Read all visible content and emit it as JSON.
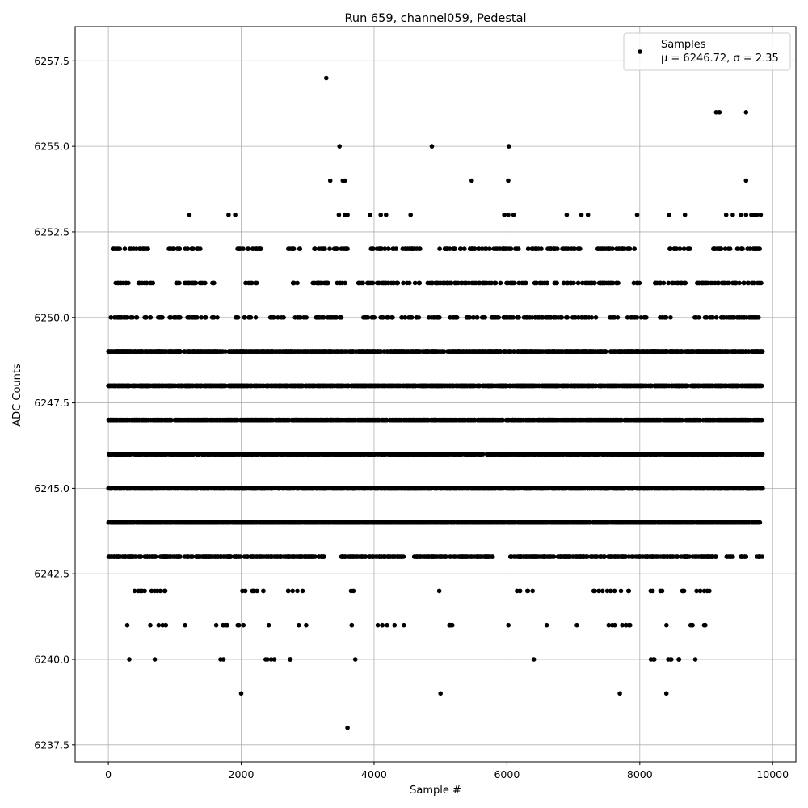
{
  "chart_data": {
    "type": "scatter",
    "title": "Run 659, channel059, Pedestal",
    "xlabel": "Sample #",
    "ylabel": "ADC Counts",
    "xlim": [
      -500,
      10350
    ],
    "ylim": [
      6237.0,
      6258.5
    ],
    "x_ticks": [
      0,
      2000,
      4000,
      6000,
      8000,
      10000
    ],
    "x_tick_labels": [
      "0",
      "2000",
      "4000",
      "6000",
      "8000",
      "10000"
    ],
    "y_ticks": [
      6237.5,
      6240.0,
      6242.5,
      6245.0,
      6247.5,
      6250.0,
      6252.5,
      6255.0,
      6257.5
    ],
    "y_tick_labels": [
      "6237.5",
      "6240.0",
      "6242.5",
      "6245.0",
      "6247.5",
      "6250.0",
      "6252.5",
      "6255.0",
      "6257.5"
    ],
    "grid": true,
    "legend_position": "top-right",
    "marker_color": "#000000",
    "series": [
      {
        "name": "Samples",
        "stats_label": "μ = 6246.72, σ = 2.35",
        "levels": [
          {
            "y": 6243,
            "x_ranges": [
              [
                0,
                3250
              ],
              [
                3500,
                4450
              ],
              [
                4600,
                5800
              ],
              [
                6050,
                9150
              ],
              [
                9300,
                9400
              ],
              [
                9500,
                9600
              ],
              [
                9750,
                9850
              ]
            ]
          },
          {
            "y": 6244,
            "x_ranges": [
              [
                0,
                9850
              ]
            ]
          },
          {
            "y": 6245,
            "x_ranges": [
              [
                0,
                9850
              ]
            ]
          },
          {
            "y": 6246,
            "x_ranges": [
              [
                0,
                9850
              ]
            ]
          },
          {
            "y": 6247,
            "x_ranges": [
              [
                0,
                9850
              ]
            ]
          },
          {
            "y": 6248,
            "x_ranges": [
              [
                0,
                9850
              ]
            ]
          },
          {
            "y": 6249,
            "x_ranges": [
              [
                0,
                9850
              ]
            ]
          }
        ],
        "points": [
          {
            "x": 3280,
            "y": 6257
          },
          {
            "x": 9150,
            "y": 6256
          },
          {
            "x": 9200,
            "y": 6256
          },
          {
            "x": 9600,
            "y": 6256
          },
          {
            "x": 3480,
            "y": 6255
          },
          {
            "x": 4870,
            "y": 6255
          },
          {
            "x": 6030,
            "y": 6255
          },
          {
            "x": 3340,
            "y": 6254
          },
          {
            "x": 3530,
            "y": 6254
          },
          {
            "x": 3560,
            "y": 6254
          },
          {
            "x": 5470,
            "y": 6254
          },
          {
            "x": 6020,
            "y": 6254
          },
          {
            "x": 9600,
            "y": 6254
          },
          {
            "x": 1220,
            "y": 6253
          },
          {
            "x": 1810,
            "y": 6253
          },
          {
            "x": 1910,
            "y": 6253
          },
          {
            "x": 3470,
            "y": 6253
          },
          {
            "x": 3560,
            "y": 6253
          },
          {
            "x": 3600,
            "y": 6253
          },
          {
            "x": 3940,
            "y": 6253
          },
          {
            "x": 4100,
            "y": 6253
          },
          {
            "x": 4180,
            "y": 6253
          },
          {
            "x": 4550,
            "y": 6253
          },
          {
            "x": 5960,
            "y": 6253
          },
          {
            "x": 6020,
            "y": 6253
          },
          {
            "x": 6100,
            "y": 6253
          },
          {
            "x": 6900,
            "y": 6253
          },
          {
            "x": 7120,
            "y": 6253
          },
          {
            "x": 7220,
            "y": 6253
          },
          {
            "x": 7960,
            "y": 6253
          },
          {
            "x": 8440,
            "y": 6253
          },
          {
            "x": 8680,
            "y": 6253
          },
          {
            "x": 9300,
            "y": 6253
          },
          {
            "x": 9400,
            "y": 6253
          },
          {
            "x": 9520,
            "y": 6253
          },
          {
            "x": 9600,
            "y": 6253
          },
          {
            "x": 9680,
            "y": 6253
          },
          {
            "x": 9720,
            "y": 6253
          },
          {
            "x": 9760,
            "y": 6253
          },
          {
            "x": 9820,
            "y": 6253
          },
          {
            "x": 2000,
            "y": 6239
          },
          {
            "x": 5000,
            "y": 6239
          },
          {
            "x": 7700,
            "y": 6239
          },
          {
            "x": 8400,
            "y": 6239
          },
          {
            "x": 3600,
            "y": 6238
          }
        ]
      }
    ]
  }
}
